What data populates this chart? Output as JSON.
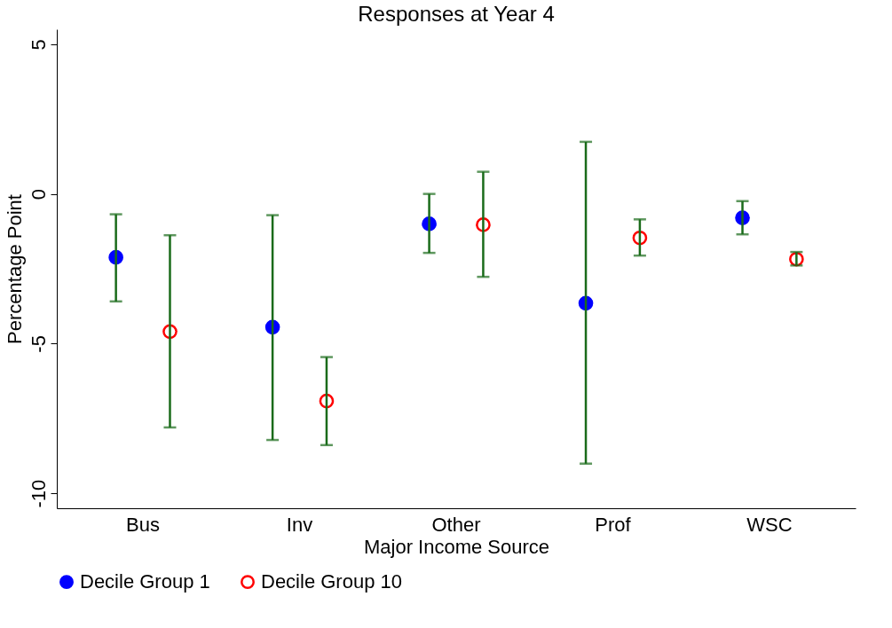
{
  "chart_data": {
    "type": "scatter",
    "title": "Responses at Year 4",
    "xlabel": "Major Income Source",
    "ylabel": "Percentage Point",
    "categories": [
      "Bus",
      "Inv",
      "Other",
      "Prof",
      "WSC"
    ],
    "series": [
      {
        "name": "Decile Group 1",
        "color": "#0000ff",
        "values": [
          -2.12,
          -4.45,
          -1.0,
          -3.65,
          -0.8
        ],
        "errors": [
          [
            -3.59,
            -0.68
          ],
          [
            -8.22,
            -0.71
          ],
          [
            -1.97,
            0.0
          ],
          [
            -9.01,
            1.74
          ],
          [
            -1.35,
            -0.24
          ]
        ]
      },
      {
        "name": "Decile Group 10",
        "color": "#ff0000",
        "values": [
          -4.6,
          -6.92,
          -1.03,
          -1.47,
          -2.18
        ],
        "errors": [
          [
            -7.8,
            -1.38
          ],
          [
            -8.39,
            -5.45
          ],
          [
            -2.77,
            0.74
          ],
          [
            -2.06,
            -0.85
          ],
          [
            -2.39,
            -1.94
          ]
        ]
      }
    ],
    "ylim": [
      -10.5,
      5.5
    ],
    "yticks": [
      -10,
      -5,
      0,
      5
    ],
    "grid": false,
    "legend": "bottom",
    "marker": "circle"
  }
}
